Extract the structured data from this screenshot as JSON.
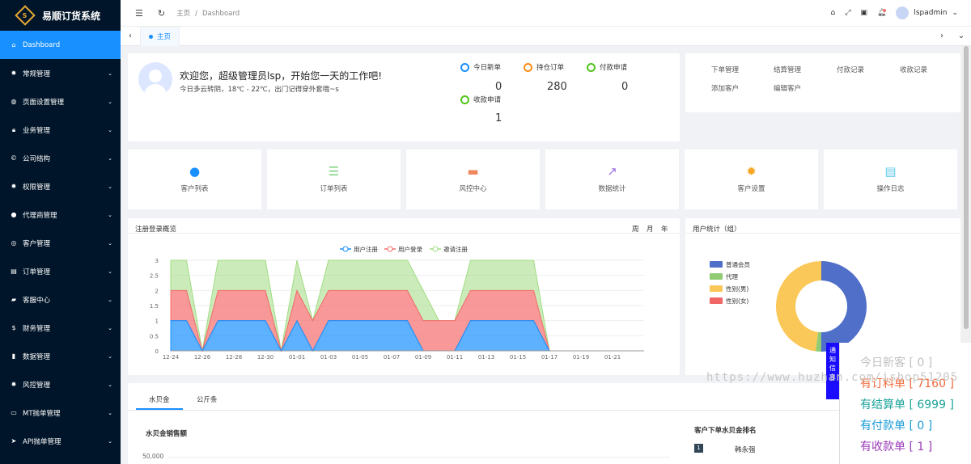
{
  "app": {
    "title": "易顺订货系统"
  },
  "sidebar": {
    "items": [
      {
        "label": "Dashboard",
        "icon": "home-icon",
        "active": true
      },
      {
        "label": "常规管理",
        "icon": "gear-icon"
      },
      {
        "label": "页面设置管理",
        "icon": "globe-icon"
      },
      {
        "label": "业务管理",
        "icon": "lock-icon"
      },
      {
        "label": "公司结构",
        "icon": "copyright-icon"
      },
      {
        "label": "权限管理",
        "icon": "gear-icon"
      },
      {
        "label": "代理商管理",
        "icon": "user-icon"
      },
      {
        "label": "客户管理",
        "icon": "users-icon"
      },
      {
        "label": "订单管理",
        "icon": "doc-icon"
      },
      {
        "label": "客服中心",
        "icon": "car-icon"
      },
      {
        "label": "财务管理",
        "icon": "dollar-icon"
      },
      {
        "label": "数据管理",
        "icon": "bar-icon"
      },
      {
        "label": "风控管理",
        "icon": "gear-icon"
      },
      {
        "label": "MT抛单管理",
        "icon": "monitor-icon"
      },
      {
        "label": "API抛单管理",
        "icon": "send-icon"
      }
    ]
  },
  "header": {
    "crumb_home": "主页",
    "crumb_sep": "/",
    "crumb_current": "Dashboard",
    "user": "lspadmin"
  },
  "tabs": {
    "home": "主页"
  },
  "welcome": {
    "title": "欢迎您，超级管理员lsp，开始您一天的工作吧!",
    "sub": "今日多云转阴，18℃ - 22℃，出门记得穿外套哦~s"
  },
  "stats": [
    {
      "label": "今日新单",
      "value": "0",
      "color": "#1890ff"
    },
    {
      "label": "持仓订单",
      "value": "280",
      "color": "#fa8c16"
    },
    {
      "label": "付款申请",
      "value": "0",
      "color": "#52c41a"
    },
    {
      "label": "收款申请",
      "value": "1",
      "color": "#52c41a"
    }
  ],
  "links": [
    "下单管理",
    "结算管理",
    "付款记录",
    "收款记录",
    "添加客户",
    "编辑客户"
  ],
  "tiles": [
    {
      "label": "客户列表",
      "icon": "user-icon",
      "color": "#1890ff",
      "glyph": "●"
    },
    {
      "label": "订单列表",
      "icon": "list-icon",
      "color": "#7ed07e",
      "glyph": "☰"
    },
    {
      "label": "风控中心",
      "icon": "monitor-icon",
      "color": "#f0875f",
      "glyph": "▬"
    },
    {
      "label": "数据统计",
      "icon": "line-chart-icon",
      "color": "#9b6fe0",
      "glyph": "↗"
    },
    {
      "label": "客户设置",
      "icon": "gear-icon",
      "color": "#f5a623",
      "glyph": "✹"
    },
    {
      "label": "操作日志",
      "icon": "doc-icon",
      "color": "#5fc8e8",
      "glyph": "▤"
    }
  ],
  "chart1": {
    "title": "注册登录概览",
    "period_week": "周",
    "period_month": "月",
    "period_year": "年"
  },
  "chart2": {
    "title": "用户统计（组）"
  },
  "chart_data": [
    {
      "type": "area",
      "title": "注册登录概览",
      "x": [
        "12-24",
        "12-25",
        "12-26",
        "12-27",
        "12-28",
        "12-29",
        "12-30",
        "12-31",
        "01-01",
        "01-02",
        "01-03",
        "01-04",
        "01-05",
        "01-06",
        "01-07",
        "01-08",
        "01-09",
        "01-10",
        "01-11",
        "01-12",
        "01-13",
        "01-14",
        "01-15",
        "01-16",
        "01-17",
        "01-18",
        "01-19",
        "01-20",
        "01-21",
        "01-22",
        "01-23"
      ],
      "x_ticks": [
        "12-24",
        "12-26",
        "12-28",
        "12-30",
        "01-01",
        "01-03",
        "01-05",
        "01-07",
        "01-09",
        "01-11",
        "01-13",
        "01-15",
        "01-17",
        "01-19",
        "01-21"
      ],
      "series": [
        {
          "name": "用户注册",
          "color": "#1890ff",
          "values": [
            1,
            1,
            0,
            1,
            1,
            1,
            1,
            0,
            1,
            0,
            1,
            1,
            1,
            1,
            1,
            1,
            0,
            0,
            0,
            1,
            1,
            1,
            1,
            1,
            0,
            0,
            0,
            0,
            0,
            0,
            0
          ]
        },
        {
          "name": "用户登录",
          "color": "#f56c6c",
          "values": [
            1,
            1,
            0,
            1,
            1,
            1,
            1,
            0,
            1,
            1,
            1,
            1,
            1,
            1,
            1,
            1,
            1,
            1,
            1,
            1,
            1,
            1,
            1,
            1,
            0,
            0,
            0,
            0,
            0,
            0,
            0
          ]
        },
        {
          "name": "邀请注册",
          "color": "#a0dc82",
          "values": [
            1,
            1,
            0,
            1,
            1,
            1,
            1,
            0,
            1,
            0,
            1,
            1,
            1,
            1,
            1,
            1,
            1,
            0,
            0,
            1,
            1,
            1,
            1,
            1,
            0,
            0,
            0,
            0,
            0,
            0,
            0
          ]
        }
      ],
      "ylim": [
        0,
        3
      ],
      "y_ticks": [
        "0",
        "0.5",
        "1",
        "1.5",
        "2",
        "2.5",
        "3"
      ],
      "legend": "top-center"
    },
    {
      "type": "pie",
      "title": "用户统计（组）",
      "donut": true,
      "labels": [
        "普通会员",
        "代理",
        "性别(男)",
        "性别(女)"
      ],
      "colors": [
        "#4f6fc8",
        "#91cc75",
        "#fac858",
        "#ee6666"
      ],
      "values": [
        50,
        2,
        48,
        0
      ],
      "legend": "left"
    }
  ],
  "bottom": {
    "tab1": "水贝金",
    "tab2": "公斤条",
    "sales_title": "水贝金销售额",
    "rank_title": "客户下单水贝金排名",
    "y_first": "50,000",
    "rank": [
      {
        "no": "1",
        "name": "韩永强"
      }
    ]
  },
  "notice": {
    "side": "通知信息",
    "rows": [
      {
        "text": "今日新客 [ 0 ]",
        "color": "#c0c0c0"
      },
      {
        "text": "有订料单 [ 7160 ]",
        "color": "#ee6a3a"
      },
      {
        "text": "有结算单 [ 6999 ]",
        "color": "#1aa39a"
      },
      {
        "text": "有付款单 [ 0 ]",
        "color": "#1a9bd6"
      },
      {
        "text": "有收款单 [ 1 ]",
        "color": "#9b3db8"
      }
    ]
  },
  "watermark": "https://www.huzhan.com/ishop51205"
}
